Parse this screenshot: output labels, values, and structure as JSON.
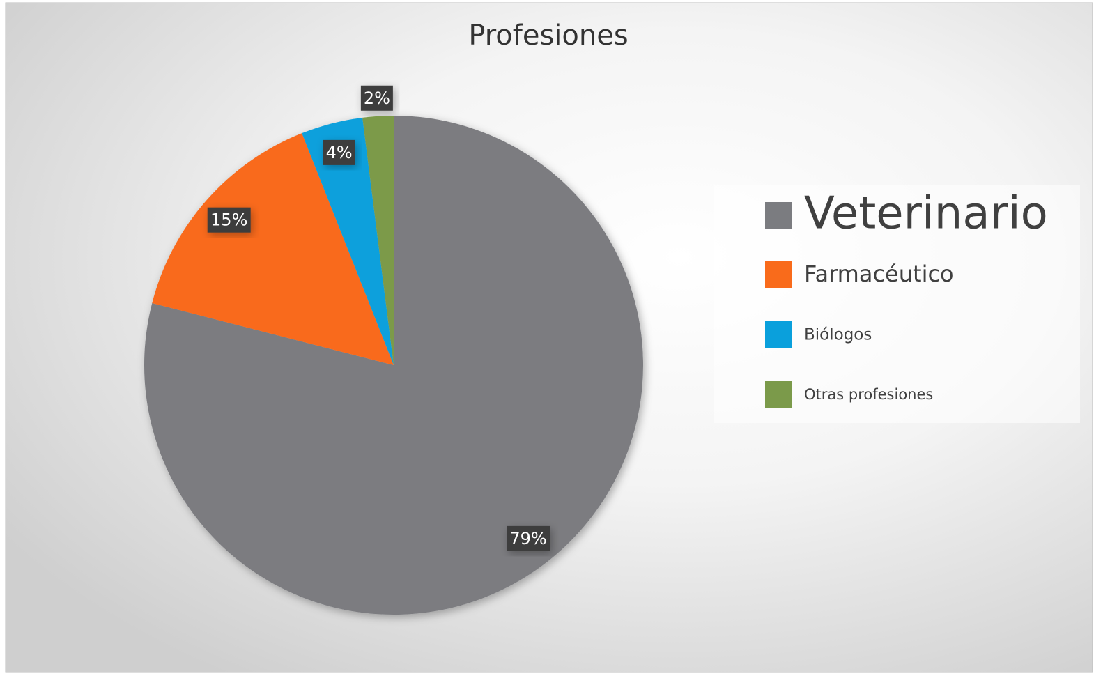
{
  "chart_data": {
    "type": "pie",
    "title": "Profesiones",
    "categories": [
      "Veterinario",
      "Farmacéutico",
      "Biólogos",
      "Otras profesiones"
    ],
    "values": [
      79,
      15,
      4,
      2
    ],
    "value_labels": [
      "79%",
      "15%",
      "4%",
      "2%"
    ],
    "colors": [
      "#7b7c80",
      "#f96b1b",
      "#0aa0dc",
      "#7b9a4a"
    ],
    "legend": "right"
  }
}
